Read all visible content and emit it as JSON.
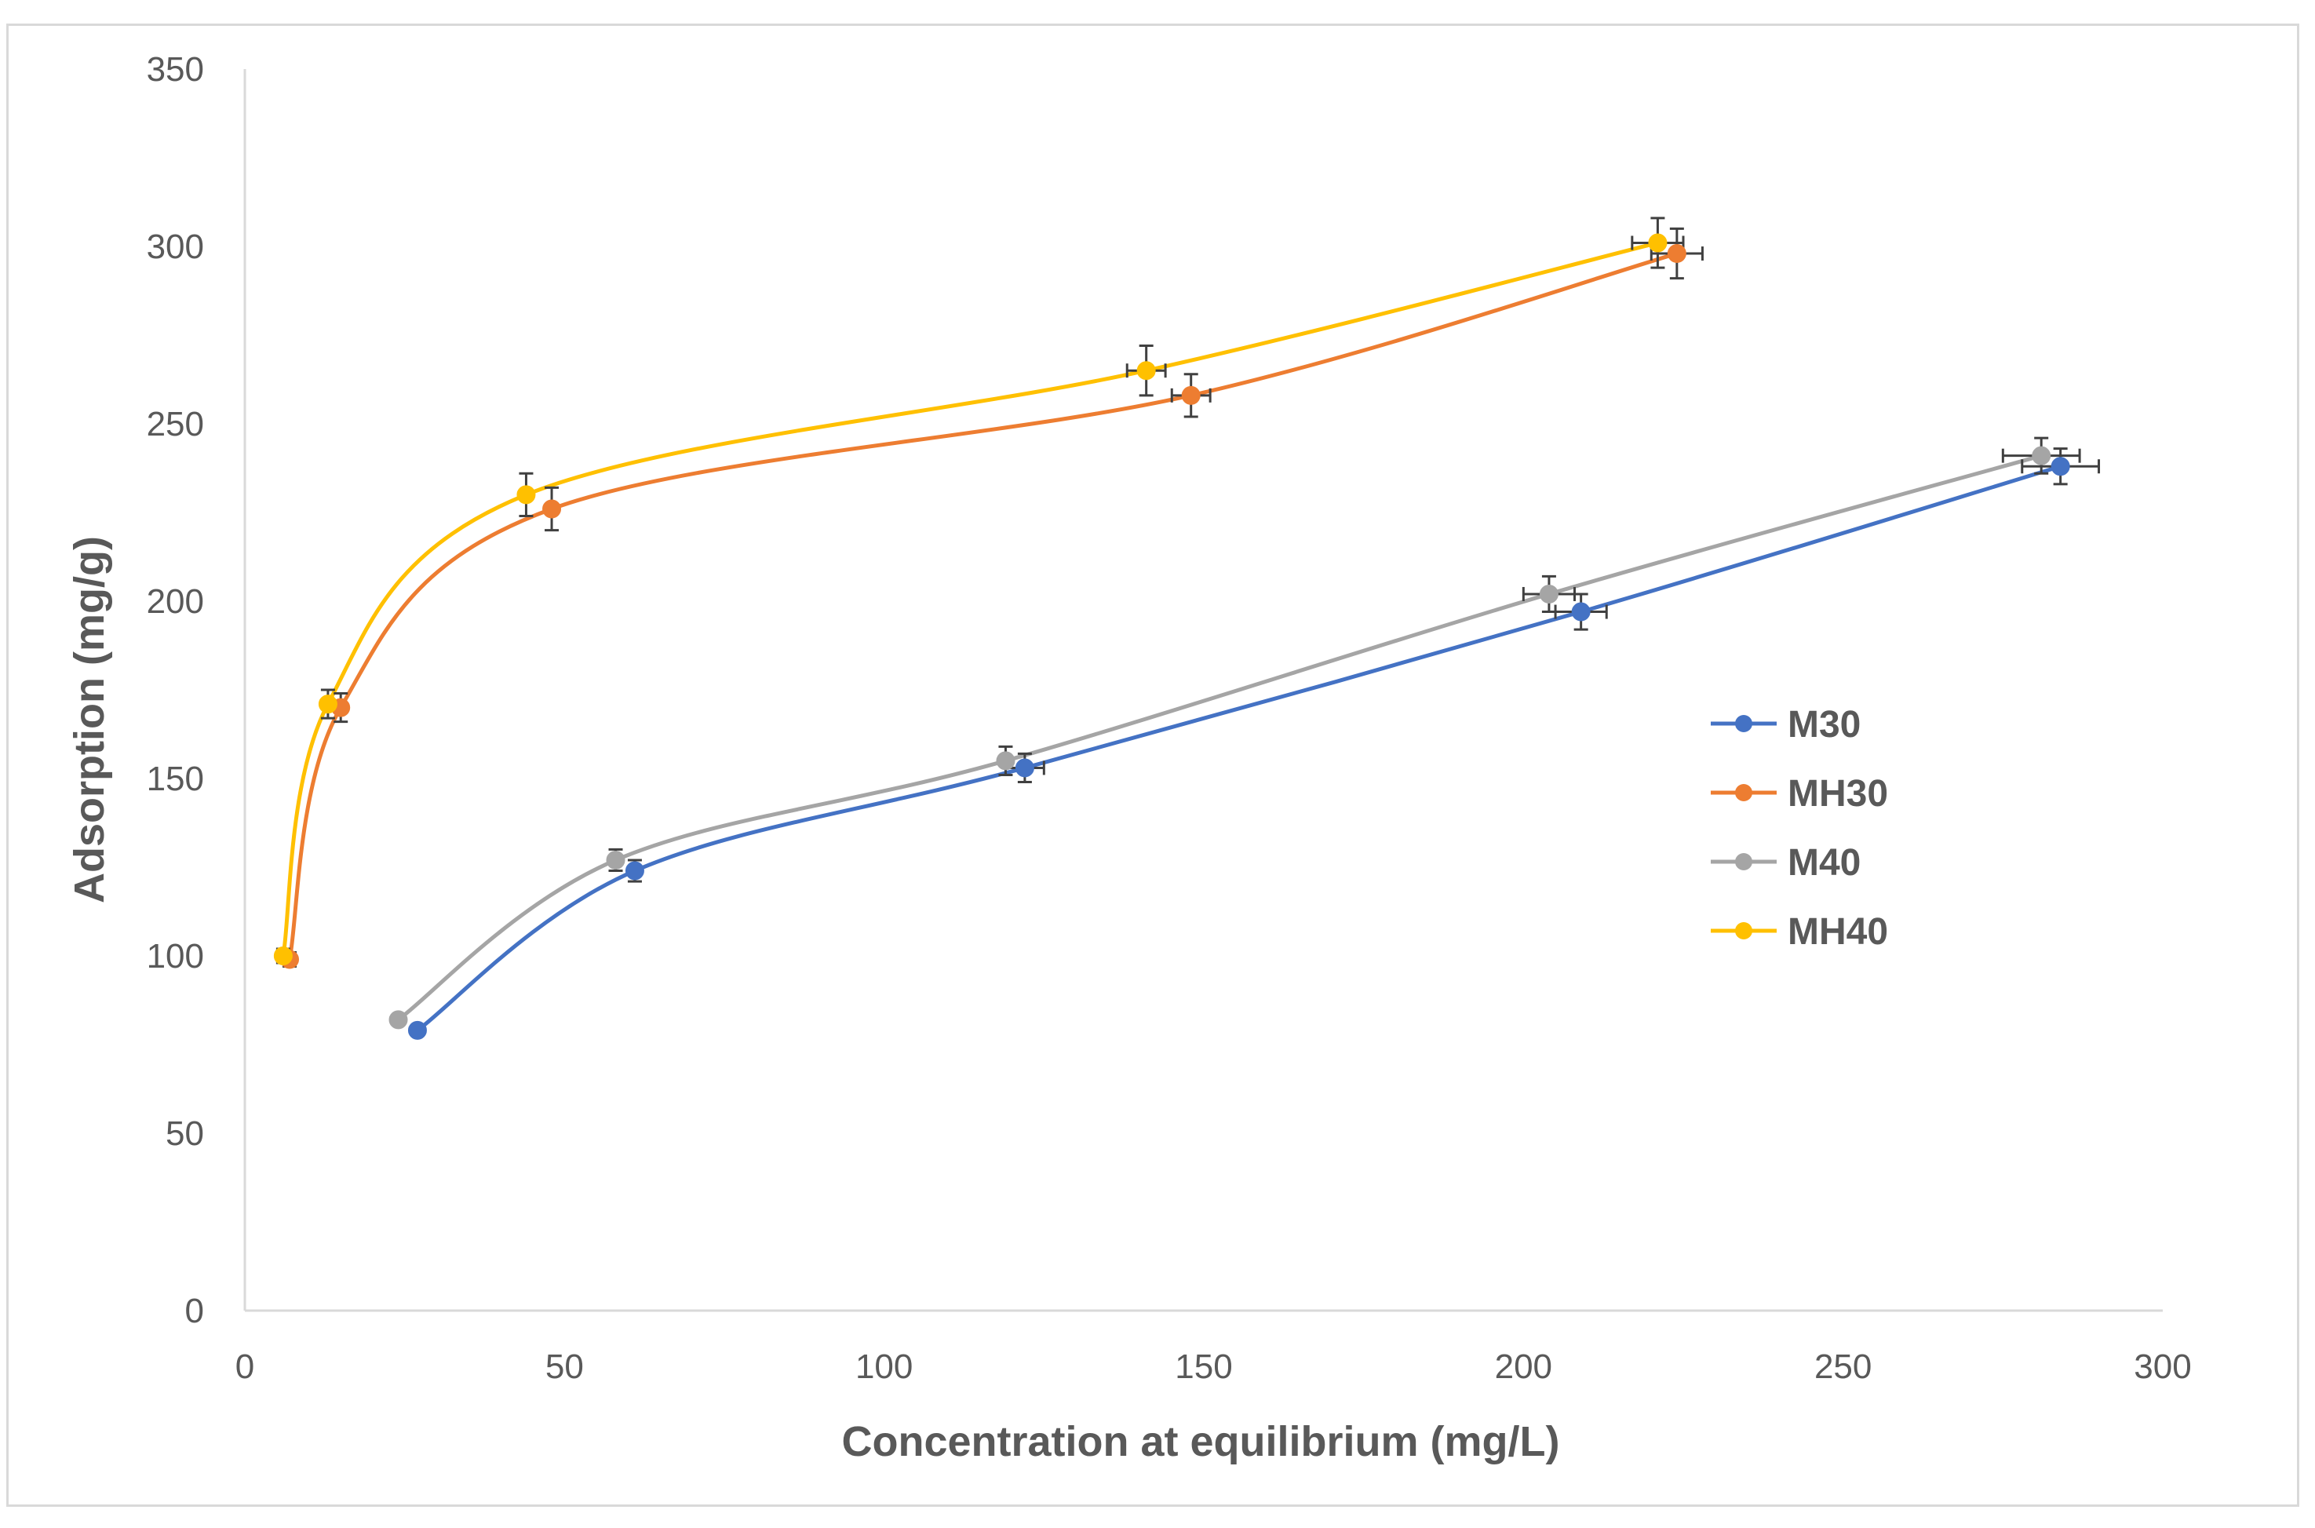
{
  "chart_data": {
    "type": "scatter",
    "title": "",
    "xlabel": "Concentration at equilibrium (mg/L)",
    "ylabel": "Adsorption (mg/g)",
    "xlim": [
      0,
      300
    ],
    "ylim": [
      0,
      350
    ],
    "xticks": [
      "0",
      "50",
      "100",
      "150",
      "200",
      "250",
      "300"
    ],
    "yticks": [
      "0",
      "50",
      "100",
      "150",
      "200",
      "250",
      "300",
      "350"
    ],
    "grid": false,
    "legend_position": "right",
    "smooth_lines": true,
    "series": [
      {
        "name": "M30",
        "color": "#4472c4",
        "x": [
          27,
          61,
          122,
          209,
          284
        ],
        "y": [
          79,
          124,
          153,
          197,
          238
        ],
        "x_err": [
          0,
          0,
          3,
          4,
          6
        ],
        "y_err": [
          1,
          3,
          4,
          5,
          5
        ]
      },
      {
        "name": "MH30",
        "color": "#ed7d31",
        "x": [
          7,
          15,
          48,
          148,
          224
        ],
        "y": [
          99,
          170,
          226,
          258,
          298
        ],
        "x_err": [
          0,
          0,
          0,
          3,
          4
        ],
        "y_err": [
          2,
          4,
          6,
          6,
          7
        ]
      },
      {
        "name": "M40",
        "color": "#a5a5a5",
        "x": [
          24,
          58,
          119,
          204,
          281
        ],
        "y": [
          82,
          127,
          155,
          202,
          241
        ],
        "x_err": [
          0,
          0,
          0,
          4,
          6
        ],
        "y_err": [
          1,
          3,
          4,
          5,
          5
        ]
      },
      {
        "name": "MH40",
        "color": "#ffc000",
        "x": [
          6,
          13,
          44,
          141,
          221
        ],
        "y": [
          100,
          171,
          230,
          265,
          301
        ],
        "x_err": [
          0,
          0,
          0,
          3,
          4
        ],
        "y_err": [
          2,
          4,
          6,
          7,
          7
        ]
      }
    ]
  },
  "colors": {
    "axis": "#d9d9d9",
    "text": "#595959",
    "error_bar": "#404040"
  }
}
